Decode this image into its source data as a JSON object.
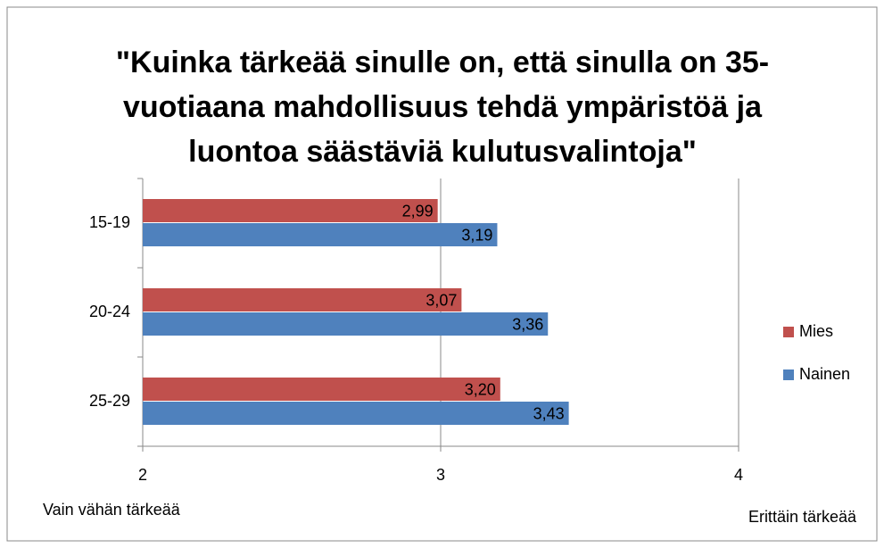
{
  "chart_data": {
    "type": "hbar",
    "title": [
      "\"Kuinka tärkeää sinulle on, että sinulla on 35-",
      "vuotiaana mahdollisuus tehdä ympäristöä ja",
      "luontoa säästäviä kulutusvalintoja\""
    ],
    "categories": [
      "15-19",
      "20-24",
      "25-29"
    ],
    "series": [
      {
        "name": "Mies",
        "color": "#c0504d",
        "values": [
          2.99,
          3.07,
          3.2
        ],
        "value_labels": [
          "2,99",
          "3,07",
          "3,20"
        ]
      },
      {
        "name": "Nainen",
        "color": "#4f81bd",
        "values": [
          3.19,
          3.36,
          3.43
        ],
        "value_labels": [
          "3,19",
          "3,36",
          "3,43"
        ]
      }
    ],
    "xlim": [
      2,
      4
    ],
    "xticks": [
      2,
      3,
      4
    ],
    "grid": true,
    "legend": "right",
    "annotations": [
      "Vain vähän tärkeää",
      "Erittäin tärkeää"
    ]
  }
}
